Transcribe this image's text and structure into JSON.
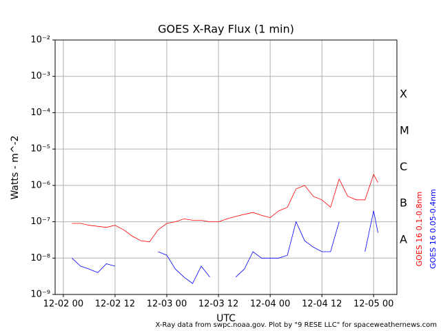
{
  "chart_data": {
    "type": "line",
    "title": "GOES X-Ray Flux (1 min)",
    "y_label": "Watts - m^-2",
    "x_label": "UTC",
    "footer": "X-Ray data from swpc.noaa.gov. Plot by \"9 RESE LLC\" for spaceweathernews.com",
    "log_y": true,
    "grid": true,
    "ylim": [
      1e-09,
      0.01
    ],
    "yticks": [
      {
        "value": 1e-09,
        "label": "10⁻⁹"
      },
      {
        "value": 1e-08,
        "label": "10⁻⁸"
      },
      {
        "value": 1e-07,
        "label": "10⁻⁷"
      },
      {
        "value": 1e-06,
        "label": "10⁻⁶"
      },
      {
        "value": 1e-05,
        "label": "10⁻⁵"
      },
      {
        "value": 0.0001,
        "label": "10⁻⁴"
      },
      {
        "value": 0.001,
        "label": "10⁻³"
      },
      {
        "value": 0.01,
        "label": "10⁻²"
      }
    ],
    "xlim": [
      -1.9,
      77.4
    ],
    "xticks": [
      {
        "value": 0,
        "label": "12-02 00"
      },
      {
        "value": 12,
        "label": "12-02 12"
      },
      {
        "value": 24,
        "label": "12-03 00"
      },
      {
        "value": 36,
        "label": "12-03 12"
      },
      {
        "value": 48,
        "label": "12-04 00"
      },
      {
        "value": 60,
        "label": "12-04 12"
      },
      {
        "value": 72,
        "label": "12-05 00"
      }
    ],
    "flare_classes": [
      {
        "label": "A",
        "value": 1e-08
      },
      {
        "label": "B",
        "value": 1e-07
      },
      {
        "label": "C",
        "value": 1e-06
      },
      {
        "label": "M",
        "value": 1e-05
      },
      {
        "label": "X",
        "value": 0.0001
      }
    ],
    "x": [
      2,
      4,
      6,
      8,
      10,
      12,
      14,
      16,
      18,
      20,
      22,
      24,
      26,
      28,
      30,
      32,
      34,
      36,
      38,
      40,
      42,
      44,
      46,
      48,
      50,
      52,
      54,
      56,
      58,
      60,
      62,
      64,
      66,
      68,
      70,
      72,
      73
    ],
    "series": [
      {
        "name": "GOES 16 0.1-0.8nm",
        "color": "#ff0000",
        "values": [
          9e-08,
          9e-08,
          8e-08,
          7.5e-08,
          7e-08,
          8e-08,
          6e-08,
          4e-08,
          3e-08,
          2.8e-08,
          6e-08,
          9e-08,
          1e-07,
          1.2e-07,
          1.1e-07,
          1.1e-07,
          1e-07,
          1e-07,
          1.2e-07,
          1.4e-07,
          1.6e-07,
          1.8e-07,
          1.5e-07,
          1.3e-07,
          2e-07,
          2.5e-07,
          8e-07,
          1e-06,
          5e-07,
          4e-07,
          2.5e-07,
          1.5e-06,
          5e-07,
          4e-07,
          4e-07,
          2e-06,
          1.2e-06
        ]
      },
      {
        "name": "GOES 16 0.05-0.4nm",
        "color": "#0000ff",
        "values": [
          1e-08,
          6e-09,
          5e-09,
          4e-09,
          7e-09,
          6e-09,
          null,
          null,
          null,
          null,
          1.5e-08,
          1.2e-08,
          5e-09,
          3e-09,
          2e-09,
          6e-09,
          3e-09,
          null,
          null,
          3e-09,
          5e-09,
          1.5e-08,
          1e-08,
          1e-08,
          1e-08,
          1.2e-08,
          1e-07,
          3e-08,
          2e-08,
          1.5e-08,
          1.5e-08,
          1e-07,
          null,
          null,
          1.5e-08,
          2e-07,
          5e-08
        ]
      }
    ]
  }
}
